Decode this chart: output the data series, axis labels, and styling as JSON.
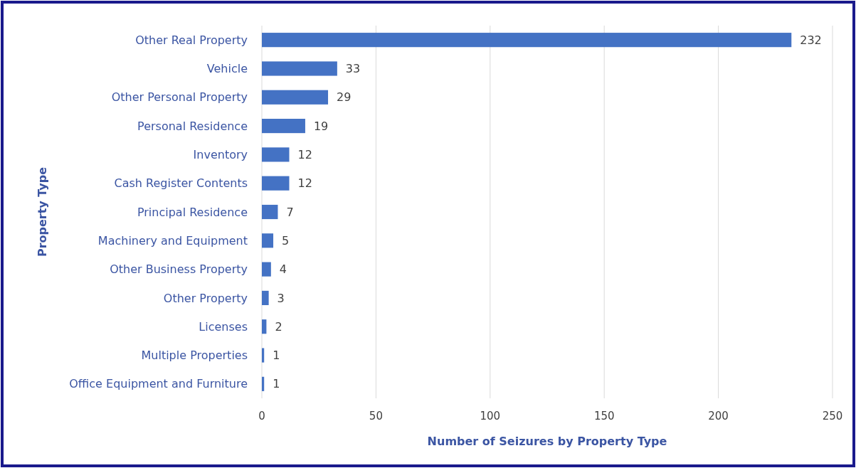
{
  "chart_data": {
    "type": "bar",
    "orientation": "horizontal",
    "xlabel": "Number of Seizures by Property Type",
    "ylabel": "Property Type",
    "categories": [
      "Other Real Property",
      "Vehicle",
      "Other Personal Property",
      "Personal Residence",
      "Inventory",
      "Cash Register Contents",
      "Principal Residence",
      "Machinery and Equipment",
      "Other Business Property",
      "Other Property",
      "Licenses",
      "Multiple Properties",
      "Office Equipment and Furniture"
    ],
    "values": [
      232,
      33,
      29,
      19,
      12,
      12,
      7,
      5,
      4,
      3,
      2,
      1,
      1
    ],
    "color": "#4472c4",
    "xlim": [
      0,
      250
    ],
    "xticks": [
      0,
      50,
      100,
      150,
      200,
      250
    ],
    "grid": "x",
    "data_labels": true
  }
}
